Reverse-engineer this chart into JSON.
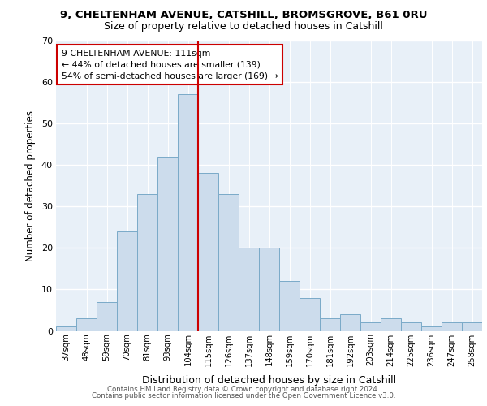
{
  "title1": "9, CHELTENHAM AVENUE, CATSHILL, BROMSGROVE, B61 0RU",
  "title2": "Size of property relative to detached houses in Catshill",
  "xlabel": "Distribution of detached houses by size in Catshill",
  "ylabel": "Number of detached properties",
  "categories": [
    "37sqm",
    "48sqm",
    "59sqm",
    "70sqm",
    "81sqm",
    "93sqm",
    "104sqm",
    "115sqm",
    "126sqm",
    "137sqm",
    "148sqm",
    "159sqm",
    "170sqm",
    "181sqm",
    "192sqm",
    "203sqm",
    "214sqm",
    "225sqm",
    "236sqm",
    "247sqm",
    "258sqm"
  ],
  "values": [
    1,
    3,
    7,
    24,
    33,
    42,
    57,
    38,
    33,
    20,
    20,
    12,
    8,
    3,
    4,
    2,
    3,
    2,
    1,
    2,
    2
  ],
  "bar_color": "#ccdcec",
  "bar_edge_color": "#7aaac8",
  "vline_color": "#cc0000",
  "annotation_text": "9 CHELTENHAM AVENUE: 111sqm\n← 44% of detached houses are smaller (139)\n54% of semi-detached houses are larger (169) →",
  "annotation_box_color": "#ffffff",
  "annotation_box_edge": "#cc0000",
  "ylim": [
    0,
    70
  ],
  "yticks": [
    0,
    10,
    20,
    30,
    40,
    50,
    60,
    70
  ],
  "footer1": "Contains HM Land Registry data © Crown copyright and database right 2024.",
  "footer2": "Contains public sector information licensed under the Open Government Licence v3.0.",
  "bg_color": "#ffffff",
  "plot_bg_color": "#e8f0f8"
}
